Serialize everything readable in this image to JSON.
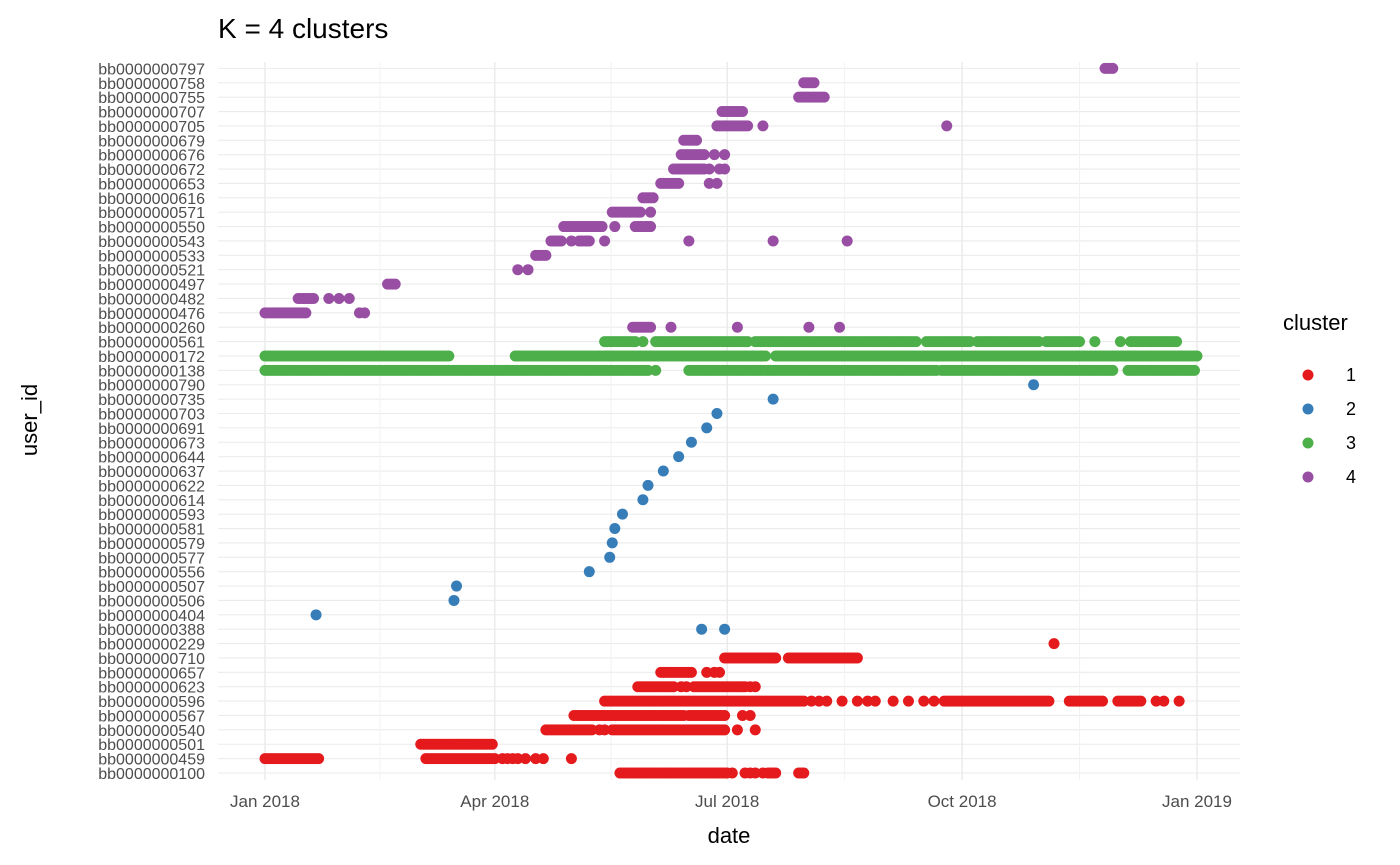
{
  "chart_data": {
    "type": "scatter",
    "title": "K = 4 clusters",
    "xlabel": "date",
    "ylabel": "user_id",
    "x_tick_labels": [
      "Jan 2018",
      "Apr 2018",
      "Jul 2018",
      "Oct 2018",
      "Jan 2019"
    ],
    "x_ticks": [
      "2018-01-01",
      "2018-04-01",
      "2018-07-01",
      "2018-10-01",
      "2019-01-01"
    ],
    "xlim": [
      "2017-12-21",
      "2019-01-12"
    ],
    "grid": true,
    "legend": {
      "title": "cluster",
      "position": "right",
      "entries": [
        "1",
        "2",
        "3",
        "4"
      ]
    },
    "categories": [
      "bb0000000100",
      "bb0000000459",
      "bb0000000501",
      "bb0000000540",
      "bb0000000567",
      "bb0000000596",
      "bb0000000623",
      "bb0000000657",
      "bb0000000710",
      "bb0000000229",
      "bb0000000388",
      "bb0000000404",
      "bb0000000506",
      "bb0000000507",
      "bb0000000556",
      "bb0000000577",
      "bb0000000579",
      "bb0000000581",
      "bb0000000593",
      "bb0000000614",
      "bb0000000622",
      "bb0000000637",
      "bb0000000644",
      "bb0000000673",
      "bb0000000691",
      "bb0000000703",
      "bb0000000735",
      "bb0000000790",
      "bb0000000138",
      "bb0000000172",
      "bb0000000561",
      "bb0000000260",
      "bb0000000476",
      "bb0000000482",
      "bb0000000497",
      "bb0000000521",
      "bb0000000533",
      "bb0000000543",
      "bb0000000550",
      "bb0000000571",
      "bb0000000616",
      "bb0000000653",
      "bb0000000672",
      "bb0000000676",
      "bb0000000679",
      "bb0000000705",
      "bb0000000707",
      "bb0000000755",
      "bb0000000758",
      "bb0000000797"
    ],
    "series": [
      {
        "name": "1",
        "color": "#E41A1C",
        "rows": [
          {
            "user_id": "bb0000000100",
            "runs": [
              [
                "2018-05-20",
                "2018-07-01"
              ]
            ],
            "dates": [
              "2018-07-03",
              "2018-07-08",
              "2018-07-10",
              "2018-07-12",
              "2018-07-15",
              "2018-07-17",
              "2018-07-18",
              "2018-07-19",
              "2018-07-20",
              "2018-07-29",
              "2018-07-30",
              "2018-07-31"
            ]
          },
          {
            "user_id": "bb0000000459",
            "runs": [
              [
                "2018-01-01",
                "2018-01-22"
              ],
              [
                "2018-03-05",
                "2018-04-01"
              ]
            ],
            "dates": [
              "2018-04-04",
              "2018-04-06",
              "2018-04-08",
              "2018-04-10",
              "2018-04-13",
              "2018-04-17",
              "2018-04-20",
              "2018-05-01"
            ]
          },
          {
            "user_id": "bb0000000501",
            "runs": [
              [
                "2018-03-03",
                "2018-03-31"
              ]
            ],
            "dates": []
          },
          {
            "user_id": "bb0000000540",
            "runs": [
              [
                "2018-04-21",
                "2018-05-09"
              ],
              [
                "2018-05-17",
                "2018-06-30"
              ]
            ],
            "dates": [
              "2018-05-12",
              "2018-05-14",
              "2018-07-05",
              "2018-07-12"
            ]
          },
          {
            "user_id": "bb0000000567",
            "runs": [
              [
                "2018-05-02",
                "2018-06-14"
              ],
              [
                "2018-06-16",
                "2018-06-30"
              ]
            ],
            "dates": [
              "2018-07-07",
              "2018-07-10"
            ]
          },
          {
            "user_id": "bb0000000596",
            "runs": [
              [
                "2018-05-14",
                "2018-07-31"
              ]
            ],
            "dates": [
              "2018-08-03",
              "2018-08-06",
              "2018-08-09",
              "2018-08-15",
              "2018-08-21",
              "2018-08-25",
              "2018-08-28",
              "2018-09-04",
              "2018-09-10",
              "2018-09-16",
              "2018-09-20",
              "2018-12-16",
              "2018-12-19",
              "2018-12-25"
            ],
            "runs2": [
              [
                "2018-09-24",
                "2018-11-04"
              ],
              [
                "2018-11-12",
                "2018-11-25"
              ],
              [
                "2018-12-01",
                "2018-12-10"
              ]
            ]
          },
          {
            "user_id": "bb0000000623",
            "runs": [
              [
                "2018-05-27",
                "2018-06-10"
              ],
              [
                "2018-06-18",
                "2018-07-08"
              ]
            ],
            "dates": [
              "2018-06-13",
              "2018-06-15",
              "2018-07-10",
              "2018-07-12"
            ]
          },
          {
            "user_id": "bb0000000657",
            "runs": [
              [
                "2018-06-05",
                "2018-06-17"
              ]
            ],
            "dates": [
              "2018-06-23",
              "2018-06-26",
              "2018-06-28"
            ]
          },
          {
            "user_id": "bb0000000710",
            "runs": [
              [
                "2018-06-30",
                "2018-07-20"
              ],
              [
                "2018-07-25",
                "2018-08-21"
              ]
            ],
            "dates": []
          },
          {
            "user_id": "bb0000000229",
            "runs": [],
            "dates": [
              "2018-11-06"
            ]
          }
        ]
      },
      {
        "name": "2",
        "color": "#377EB8",
        "rows": [
          {
            "user_id": "bb0000000388",
            "runs": [],
            "dates": [
              "2018-06-21",
              "2018-06-30"
            ]
          },
          {
            "user_id": "bb0000000404",
            "runs": [],
            "dates": [
              "2018-01-21"
            ]
          },
          {
            "user_id": "bb0000000506",
            "runs": [],
            "dates": [
              "2018-03-16"
            ]
          },
          {
            "user_id": "bb0000000507",
            "runs": [],
            "dates": [
              "2018-03-17"
            ]
          },
          {
            "user_id": "bb0000000556",
            "runs": [],
            "dates": [
              "2018-05-08"
            ]
          },
          {
            "user_id": "bb0000000577",
            "runs": [],
            "dates": [
              "2018-05-16"
            ]
          },
          {
            "user_id": "bb0000000579",
            "runs": [],
            "dates": [
              "2018-05-17"
            ]
          },
          {
            "user_id": "bb0000000581",
            "runs": [],
            "dates": [
              "2018-05-18"
            ]
          },
          {
            "user_id": "bb0000000593",
            "runs": [],
            "dates": [
              "2018-05-21"
            ]
          },
          {
            "user_id": "bb0000000614",
            "runs": [],
            "dates": [
              "2018-05-29"
            ]
          },
          {
            "user_id": "bb0000000622",
            "runs": [],
            "dates": [
              "2018-05-31"
            ]
          },
          {
            "user_id": "bb0000000637",
            "runs": [],
            "dates": [
              "2018-06-06"
            ]
          },
          {
            "user_id": "bb0000000644",
            "runs": [],
            "dates": [
              "2018-06-12"
            ]
          },
          {
            "user_id": "bb0000000673",
            "runs": [],
            "dates": [
              "2018-06-17"
            ]
          },
          {
            "user_id": "bb0000000691",
            "runs": [],
            "dates": [
              "2018-06-23"
            ]
          },
          {
            "user_id": "bb0000000703",
            "runs": [],
            "dates": [
              "2018-06-27"
            ]
          },
          {
            "user_id": "bb0000000735",
            "runs": [],
            "dates": [
              "2018-07-19"
            ]
          },
          {
            "user_id": "bb0000000790",
            "runs": [],
            "dates": [
              "2018-10-29"
            ]
          }
        ]
      },
      {
        "name": "3",
        "color": "#4DAF4A",
        "rows": [
          {
            "user_id": "bb0000000138",
            "runs": [
              [
                "2018-01-01",
                "2018-05-31"
              ],
              [
                "2018-06-16",
                "2018-09-21"
              ],
              [
                "2018-09-23",
                "2018-11-29"
              ],
              [
                "2018-12-05",
                "2018-12-31"
              ]
            ],
            "dates": [
              "2018-06-03"
            ]
          },
          {
            "user_id": "bb0000000172",
            "runs": [
              [
                "2018-01-01",
                "2018-03-14"
              ],
              [
                "2018-04-09",
                "2018-07-16"
              ],
              [
                "2018-07-20",
                "2019-01-01"
              ]
            ],
            "dates": []
          },
          {
            "user_id": "bb0000000561",
            "runs": [
              [
                "2018-05-14",
                "2018-05-26"
              ],
              [
                "2018-06-03",
                "2018-07-09"
              ],
              [
                "2018-07-12",
                "2018-09-13"
              ],
              [
                "2018-09-17",
                "2018-10-04"
              ],
              [
                "2018-10-07",
                "2018-10-31"
              ],
              [
                "2018-11-03",
                "2018-11-16"
              ],
              [
                "2018-12-06",
                "2018-12-24"
              ]
            ],
            "dates": [
              "2018-05-29",
              "2018-11-22",
              "2018-12-02"
            ]
          }
        ]
      },
      {
        "name": "4",
        "color": "#984EA3",
        "rows": [
          {
            "user_id": "bb0000000260",
            "runs": [
              [
                "2018-05-25",
                "2018-06-01"
              ]
            ],
            "dates": [
              "2018-06-09",
              "2018-07-05",
              "2018-08-02",
              "2018-08-14"
            ]
          },
          {
            "user_id": "bb0000000476",
            "runs": [
              [
                "2018-01-01",
                "2018-01-17"
              ]
            ],
            "dates": [
              "2018-02-07",
              "2018-02-09"
            ]
          },
          {
            "user_id": "bb0000000482",
            "runs": [
              [
                "2018-01-14",
                "2018-01-20"
              ]
            ],
            "dates": [
              "2018-01-26",
              "2018-01-30",
              "2018-02-03"
            ]
          },
          {
            "user_id": "bb0000000497",
            "runs": [
              [
                "2018-02-18",
                "2018-02-21"
              ]
            ],
            "dates": []
          },
          {
            "user_id": "bb0000000521",
            "runs": [],
            "dates": [
              "2018-04-10",
              "2018-04-14"
            ]
          },
          {
            "user_id": "bb0000000533",
            "runs": [
              [
                "2018-04-17",
                "2018-04-21"
              ]
            ],
            "dates": []
          },
          {
            "user_id": "bb0000000543",
            "runs": [
              [
                "2018-04-23",
                "2018-04-27"
              ],
              [
                "2018-05-04",
                "2018-05-08"
              ]
            ],
            "dates": [
              "2018-05-01",
              "2018-05-14",
              "2018-06-16",
              "2018-07-19",
              "2018-08-17"
            ]
          },
          {
            "user_id": "bb0000000550",
            "runs": [
              [
                "2018-04-28",
                "2018-05-13"
              ],
              [
                "2018-05-26",
                "2018-06-01"
              ]
            ],
            "dates": [
              "2018-05-18"
            ]
          },
          {
            "user_id": "bb0000000571",
            "runs": [
              [
                "2018-05-17",
                "2018-05-28"
              ]
            ],
            "dates": [
              "2018-06-01"
            ]
          },
          {
            "user_id": "bb0000000616",
            "runs": [
              [
                "2018-05-29",
                "2018-06-02"
              ]
            ],
            "dates": []
          },
          {
            "user_id": "bb0000000653",
            "runs": [
              [
                "2018-06-05",
                "2018-06-12"
              ]
            ],
            "dates": [
              "2018-06-24",
              "2018-06-27"
            ]
          },
          {
            "user_id": "bb0000000672",
            "runs": [
              [
                "2018-06-10",
                "2018-06-22"
              ]
            ],
            "dates": [
              "2018-06-24",
              "2018-06-28",
              "2018-06-30"
            ]
          },
          {
            "user_id": "bb0000000676",
            "runs": [
              [
                "2018-06-13",
                "2018-06-22"
              ]
            ],
            "dates": [
              "2018-06-26",
              "2018-06-30"
            ]
          },
          {
            "user_id": "bb0000000679",
            "runs": [
              [
                "2018-06-14",
                "2018-06-19"
              ]
            ],
            "dates": []
          },
          {
            "user_id": "bb0000000705",
            "runs": [
              [
                "2018-06-27",
                "2018-07-09"
              ]
            ],
            "dates": [
              "2018-07-15",
              "2018-09-25"
            ]
          },
          {
            "user_id": "bb0000000707",
            "runs": [
              [
                "2018-06-29",
                "2018-07-07"
              ]
            ],
            "dates": []
          },
          {
            "user_id": "bb0000000755",
            "runs": [
              [
                "2018-07-29",
                "2018-08-08"
              ]
            ],
            "dates": []
          },
          {
            "user_id": "bb0000000758",
            "runs": [
              [
                "2018-07-31",
                "2018-08-04"
              ]
            ],
            "dates": []
          },
          {
            "user_id": "bb0000000797",
            "runs": [
              [
                "2018-11-26",
                "2018-11-29"
              ]
            ],
            "dates": []
          }
        ]
      }
    ]
  }
}
